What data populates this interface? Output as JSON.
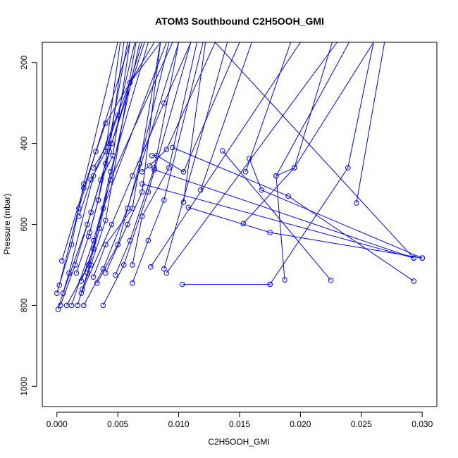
{
  "chart_data": {
    "type": "line",
    "title": "ATOM3 Southbound C2H5OOH_GMI",
    "xlabel": "C2H5OOH_GMI",
    "ylabel": "Pressure (mbar)",
    "xlim": [
      -0.0012,
      0.0312
    ],
    "ylim": [
      1050,
      150
    ],
    "y_reversed": true,
    "x_ticks": [
      "0.000",
      "0.005",
      "0.010",
      "0.015",
      "0.020",
      "0.025",
      "0.030"
    ],
    "x_tick_values": [
      0,
      0.005,
      0.01,
      0.015,
      0.02,
      0.025,
      0.03
    ],
    "y_ticks": [
      "200",
      "400",
      "600",
      "800",
      "1000"
    ],
    "y_tick_values": [
      200,
      400,
      600,
      800,
      1000
    ],
    "series_color": "#0000ff",
    "marker": "open-circle",
    "series": [
      {
        "x": [
          0.0001,
          0.001,
          0.003,
          0.006,
          0.0085
        ],
        "y": [
          810,
          720,
          480,
          250,
          150
        ]
      },
      {
        "x": [
          0.0003,
          0.0015,
          0.004,
          0.007
        ],
        "y": [
          800,
          700,
          450,
          150
        ]
      },
      {
        "x": [
          0.0,
          0.0012,
          0.0022,
          0.005
        ],
        "y": [
          770,
          650,
          500,
          150
        ]
      },
      {
        "x": [
          0.0005,
          0.0025,
          0.0045,
          0.0072
        ],
        "y": [
          770,
          600,
          400,
          150
        ]
      },
      {
        "x": [
          0.0002,
          0.0018,
          0.0032,
          0.006
        ],
        "y": [
          750,
          560,
          420,
          150
        ]
      },
      {
        "x": [
          0.0004,
          0.0022,
          0.004,
          0.008
        ],
        "y": [
          690,
          510,
          350,
          150
        ]
      },
      {
        "x": [
          0.0008,
          0.0026,
          0.0038,
          0.009
        ],
        "y": [
          800,
          700,
          560,
          150
        ]
      },
      {
        "x": [
          0.0012,
          0.003,
          0.0044,
          0.0095
        ],
        "y": [
          800,
          640,
          490,
          150
        ]
      },
      {
        "x": [
          0.0017,
          0.0025,
          0.0035,
          0.0068
        ],
        "y": [
          800,
          720,
          610,
          150
        ]
      },
      {
        "x": [
          0.0022,
          0.0038,
          0.0058,
          0.01
        ],
        "y": [
          800,
          710,
          560,
          150
        ]
      },
      {
        "x": [
          0.0038,
          0.0055,
          0.0075,
          0.011
        ],
        "y": [
          800,
          700,
          520,
          150
        ]
      },
      {
        "x": [
          0.002,
          0.0045,
          0.0062,
          0.0088,
          0.011
        ],
        "y": [
          770,
          600,
          480,
          300,
          150
        ]
      },
      {
        "x": [
          0.0021,
          0.0028,
          0.004,
          0.0065
        ],
        "y": [
          760,
          700,
          590,
          150
        ]
      },
      {
        "x": [
          0.0016,
          0.0026,
          0.0034,
          0.0058
        ],
        "y": [
          720,
          630,
          540,
          150
        ]
      },
      {
        "x": [
          0.002,
          0.003,
          0.0044,
          0.0075
        ],
        "y": [
          740,
          660,
          470,
          150
        ]
      },
      {
        "x": [
          0.003,
          0.004,
          0.0062,
          0.0085
        ],
        "y": [
          730,
          650,
          560,
          150
        ]
      },
      {
        "x": [
          0.0033,
          0.005,
          0.0068,
          0.0092
        ],
        "y": [
          745,
          650,
          450,
          150
        ]
      },
      {
        "x": [
          0.0062,
          0.0075,
          0.0088,
          0.012
        ],
        "y": [
          745,
          640,
          540,
          150
        ]
      },
      {
        "x": [
          0.004,
          0.0058,
          0.007,
          0.0085
        ],
        "y": [
          720,
          600,
          520,
          150
        ]
      },
      {
        "x": [
          0.0048,
          0.006,
          0.008,
          0.01
        ],
        "y": [
          725,
          640,
          460,
          150
        ]
      },
      {
        "x": [
          0.0062,
          0.007,
          0.0092,
          0.0115
        ],
        "y": [
          700,
          580,
          460,
          150
        ]
      },
      {
        "x": [
          0.0027,
          0.0034,
          0.0043,
          0.0055
        ],
        "y": [
          620,
          540,
          420,
          150
        ]
      },
      {
        "x": [
          0.0018,
          0.0028,
          0.004,
          0.0052
        ],
        "y": [
          580,
          490,
          420,
          150
        ]
      },
      {
        "x": [
          0.0028,
          0.0036,
          0.0046,
          0.006
        ],
        "y": [
          570,
          490,
          430,
          150
        ]
      },
      {
        "x": [
          0.003,
          0.0042,
          0.005,
          0.0064
        ],
        "y": [
          460,
          400,
          330,
          150
        ]
      },
      {
        "x": [
          0.007,
          0.0076,
          0.009,
          0.013
        ],
        "y": [
          470,
          455,
          415,
          150
        ]
      },
      {
        "x": [
          0.0078,
          0.0082,
          0.0104,
          0.015
        ],
        "y": [
          430,
          430,
          470,
          150
        ]
      },
      {
        "x": [
          0.0095,
          0.019,
          0.0293
        ],
        "y": [
          410,
          530,
          740
        ]
      },
      {
        "x": [
          0.0088,
          0.014
        ],
        "y": [
          710,
          150
        ]
      },
      {
        "x": [
          0.009,
          0.023
        ],
        "y": [
          720,
          150
        ]
      },
      {
        "x": [
          0.0077,
          0.02
        ],
        "y": [
          705,
          150
        ]
      },
      {
        "x": [
          0.0118,
          0.016
        ],
        "y": [
          515,
          150
        ]
      },
      {
        "x": [
          0.0104,
          0.0122
        ],
        "y": [
          545,
          150
        ]
      },
      {
        "x": [
          0.0108,
          0.0175,
          0.03
        ],
        "y": [
          558,
          620,
          683
        ]
      },
      {
        "x": [
          0.0153,
          0.0195,
          0.0226
        ],
        "y": [
          598,
          460,
          150
        ]
      },
      {
        "x": [
          0.0155,
          0.0192
        ],
        "y": [
          470,
          150
        ]
      },
      {
        "x": [
          0.0136,
          0.0225
        ],
        "y": [
          418,
          738
        ]
      },
      {
        "x": [
          0.0158,
          0.0168,
          0.03
        ],
        "y": [
          437,
          515,
          683
        ]
      },
      {
        "x": [
          0.018,
          0.0195,
          0.026
        ],
        "y": [
          480,
          460,
          150
        ]
      },
      {
        "x": [
          0.0187,
          0.018,
          0.024
        ],
        "y": [
          737,
          480,
          150
        ]
      },
      {
        "x": [
          0.0103,
          0.0175
        ],
        "y": [
          748,
          748
        ]
      },
      {
        "x": [
          0.0175,
          0.0239,
          0.026
        ],
        "y": [
          748,
          460,
          150
        ]
      },
      {
        "x": [
          0.0246,
          0.0269
        ],
        "y": [
          547,
          150
        ]
      },
      {
        "x": [
          0.0293,
          0.013
        ],
        "y": [
          683,
          150
        ]
      },
      {
        "x": [
          0.008,
          0.0293
        ],
        "y": [
          465,
          683
        ]
      },
      {
        "x": [
          0.007,
          0.0293
        ],
        "y": [
          500,
          683
        ]
      }
    ]
  }
}
